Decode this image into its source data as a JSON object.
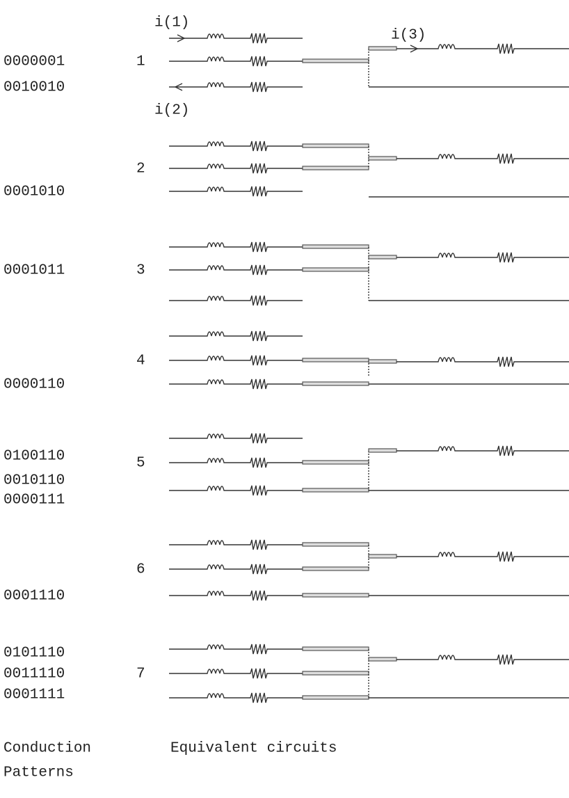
{
  "currents": [
    "i(1)",
    "i(2)",
    "i(3)"
  ],
  "groups": [
    {
      "number": "1",
      "patterns": [
        "0000001",
        "0010010"
      ]
    },
    {
      "number": "2",
      "patterns": [
        "0001010"
      ]
    },
    {
      "number": "3",
      "patterns": [
        "0001011"
      ]
    },
    {
      "number": "4",
      "patterns": [
        "0000110"
      ]
    },
    {
      "number": "5",
      "patterns": [
        "0100110",
        "0010110",
        "0000111"
      ]
    },
    {
      "number": "6",
      "patterns": [
        "0001110"
      ]
    },
    {
      "number": "7",
      "patterns": [
        "0101110",
        "0011110",
        "0001111"
      ]
    }
  ],
  "footer": {
    "left": [
      "Conduction",
      "Patterns"
    ],
    "right": "Equivalent circuits"
  }
}
